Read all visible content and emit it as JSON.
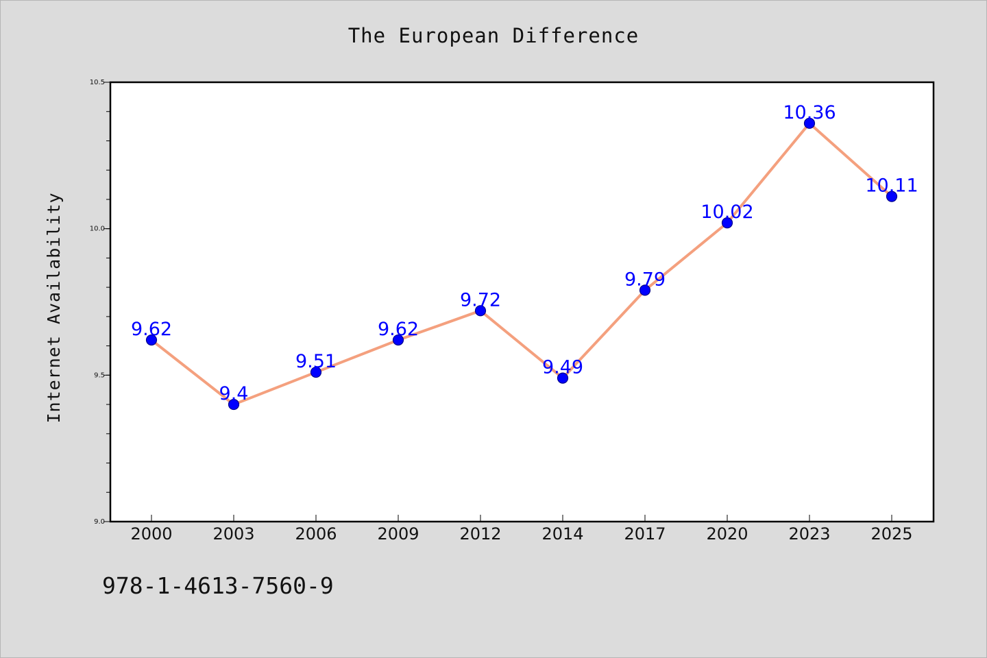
{
  "chart_data": {
    "type": "line",
    "title": "The European Difference",
    "xlabel": "",
    "ylabel": "Internet Availability",
    "categories": [
      "2000",
      "2003",
      "2006",
      "2009",
      "2012",
      "2014",
      "2017",
      "2020",
      "2023",
      "2025"
    ],
    "values": [
      9.62,
      9.4,
      9.51,
      9.62,
      9.72,
      9.49,
      9.79,
      10.02,
      10.36,
      10.11
    ],
    "data_labels": [
      "9.62",
      "9.4",
      "9.51",
      "9.62",
      "9.72",
      "9.49",
      "9.79",
      "10.02",
      "10.36",
      "10.11"
    ],
    "ylim": [
      9.0,
      10.5
    ],
    "yticks": [
      "9.0",
      "9.5",
      "10.0",
      "10.5"
    ],
    "grid": false,
    "legend": "none",
    "colors": {
      "line": "#f4a07e",
      "marker_fill": "#0000ff",
      "marker_edge": "#00008b",
      "data_label": "#0000ff",
      "plot_background": "#ffffff",
      "figure_background": "#dcdcdc"
    }
  },
  "footer": {
    "text": "978-1-4613-7560-9"
  }
}
